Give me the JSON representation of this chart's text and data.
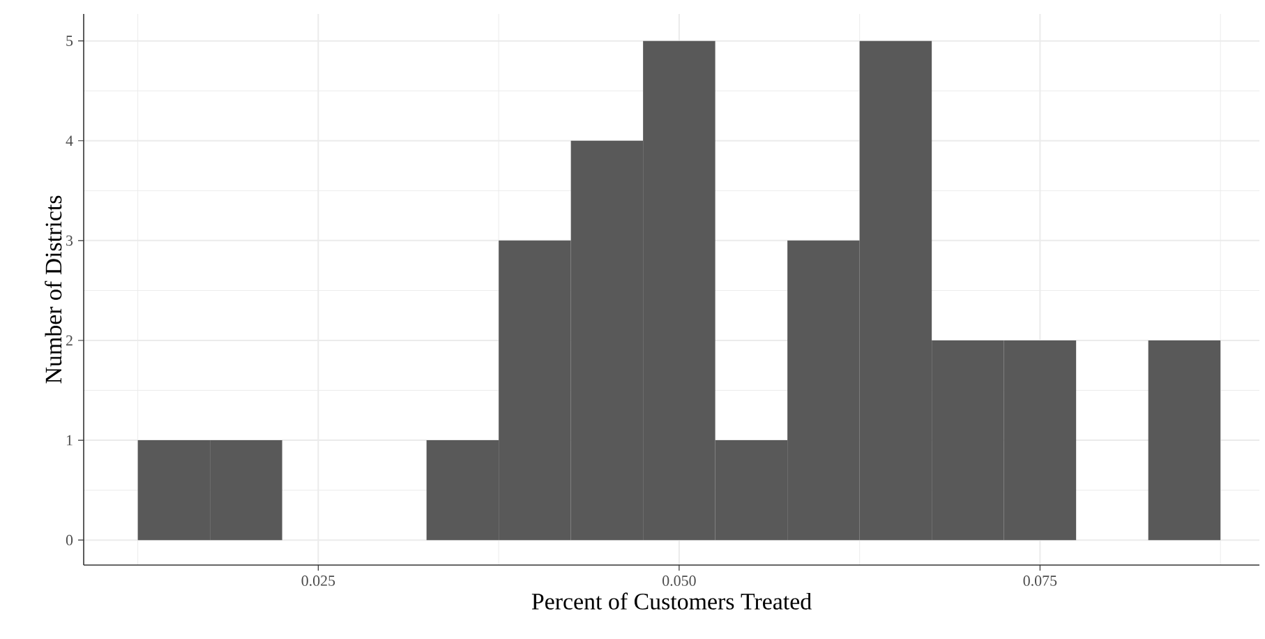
{
  "chart_data": {
    "type": "histogram",
    "xlabel": "Percent of Customers Treated",
    "ylabel": "Number of Districts",
    "bins": [
      0.0125,
      0.0175,
      0.0225,
      0.0275,
      0.0325,
      0.0375,
      0.0425,
      0.0475,
      0.0525,
      0.0575,
      0.0625,
      0.0675,
      0.0725,
      0.0775,
      0.0825,
      0.0875
    ],
    "values": [
      1,
      1,
      0,
      0,
      1,
      3,
      4,
      5,
      1,
      3,
      5,
      2,
      2,
      0,
      2
    ],
    "color": "#595959",
    "xlim": [
      0.00875,
      0.0902
    ],
    "ylim": [
      -0.25,
      5.27
    ],
    "xticks": [
      0.025,
      {
        "value": 0.05,
        "label": "0.050"
      },
      0.075
    ],
    "yticks": [
      0,
      1,
      2,
      3,
      4,
      5
    ],
    "grid": true
  }
}
